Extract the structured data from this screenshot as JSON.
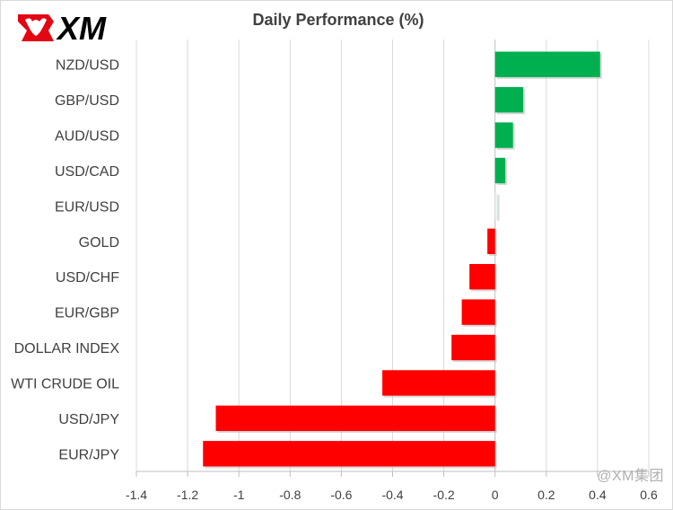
{
  "brand": {
    "logo_text": "XM"
  },
  "watermark": "@XM集团",
  "chart_data": {
    "type": "bar",
    "orientation": "horizontal",
    "title": "Daily Performance (%)",
    "xlabel": "",
    "ylabel": "",
    "xlim": [
      -1.4,
      0.6
    ],
    "x_ticks": [
      -1.4,
      -1.2,
      -1,
      -0.8,
      -0.6,
      -0.4,
      -0.2,
      0,
      0.2,
      0.4,
      0.6
    ],
    "grid": "vertical",
    "categories": [
      "NZD/USD",
      "GBP/USD",
      "AUD/USD",
      "USD/CAD",
      "EUR/USD",
      "GOLD",
      "USD/CHF",
      "EUR/GBP",
      "DOLLAR INDEX",
      "WTI CRUDE OIL",
      "USD/JPY",
      "EUR/JPY"
    ],
    "values": [
      0.41,
      0.11,
      0.07,
      0.04,
      0.01,
      -0.03,
      -0.1,
      -0.13,
      -0.17,
      -0.44,
      -1.09,
      -1.14
    ],
    "colors": {
      "positive": "#00b050",
      "negative": "#ff0000",
      "near_zero": "#e6f4ea"
    }
  }
}
